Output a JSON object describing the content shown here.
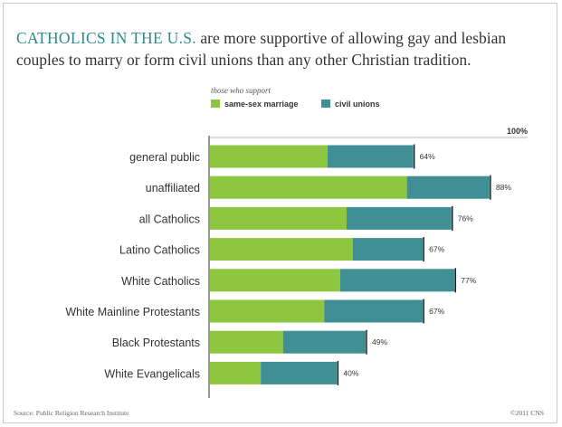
{
  "headline": {
    "lead": "CATHOLICS IN THE U.S.",
    "rest": " are more supportive of allowing gay and lesbian couples to marry or form civil unions than any other Christian tradition."
  },
  "legend": {
    "title": "those who support",
    "items": [
      {
        "label": "same-sex marriage",
        "color": "#8dc63f"
      },
      {
        "label": "civil unions",
        "color": "#3f8f95"
      }
    ]
  },
  "chart_data": {
    "type": "bar",
    "orientation": "horizontal",
    "stacked": true,
    "categories": [
      "general public",
      "unaffiliated",
      "all Catholics",
      "Latino Catholics",
      "White Catholics",
      "White Mainline Protestants",
      "Black Protestants",
      "White Evangelicals"
    ],
    "series": [
      {
        "name": "same-sex marriage",
        "values": [
          37,
          62,
          43,
          45,
          41,
          36,
          23,
          16
        ]
      },
      {
        "name": "civil unions",
        "values": [
          27,
          26,
          33,
          22,
          36,
          31,
          26,
          24
        ]
      }
    ],
    "totals": [
      "64%",
      "88%",
      "76%",
      "67%",
      "77%",
      "67%",
      "49%",
      "40%"
    ],
    "axis_max_label": "100%",
    "xlim": [
      0,
      100
    ],
    "legend_position": "top"
  },
  "footer": {
    "source": "Source: Public Religion Research Institute",
    "credit": "©2011 CNS"
  }
}
